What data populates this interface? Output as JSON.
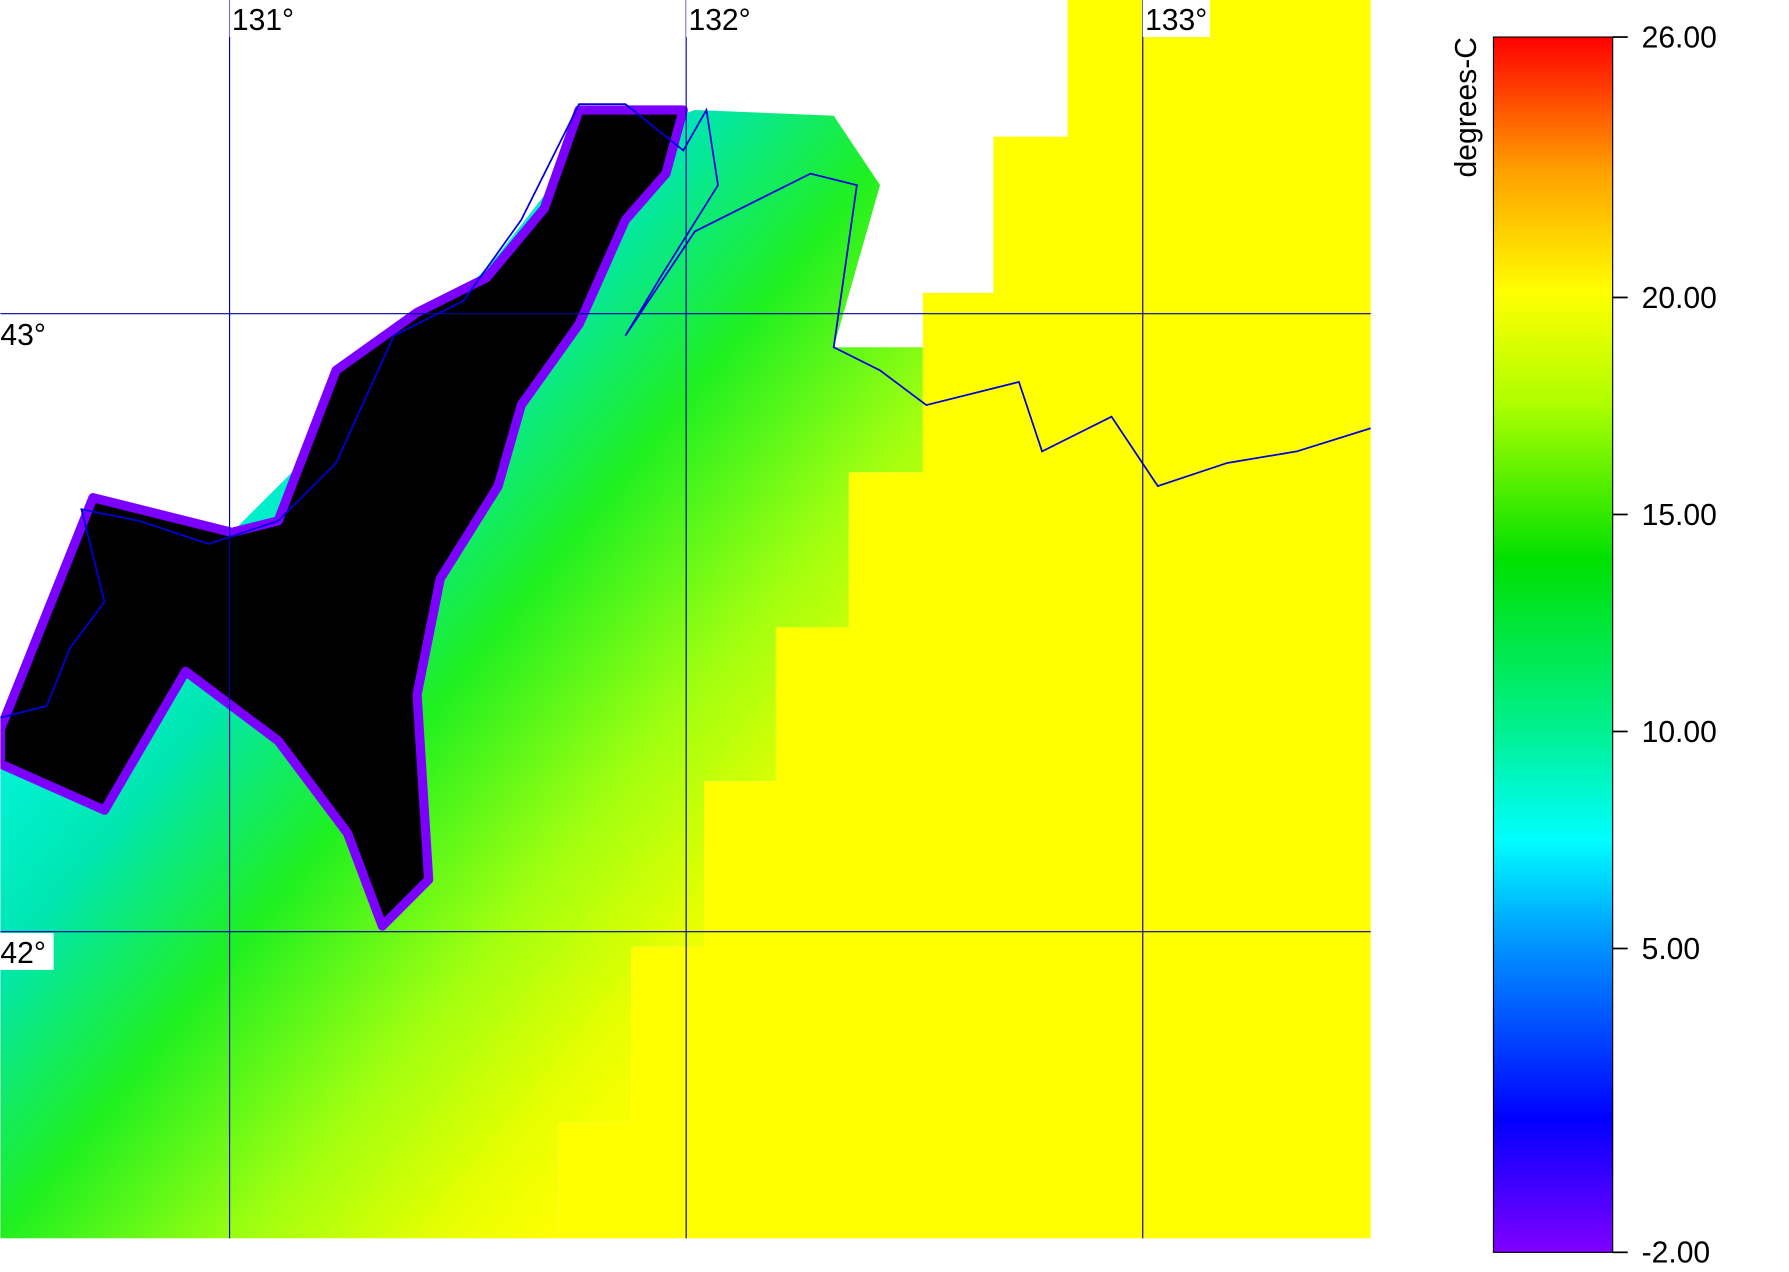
{
  "map": {
    "longitudes": [
      {
        "value": 131,
        "label": "131°"
      },
      {
        "value": 132,
        "label": "132°"
      },
      {
        "value": 133,
        "label": "133°"
      }
    ],
    "latitudes": [
      {
        "value": 43,
        "label": "43°"
      },
      {
        "value": 42,
        "label": "42°"
      }
    ]
  },
  "colorbar": {
    "title": "degrees-C",
    "ticks": [
      {
        "value": 26,
        "label": "26.00"
      },
      {
        "value": 20,
        "label": "20.00"
      },
      {
        "value": 15,
        "label": "15.00"
      },
      {
        "value": 10,
        "label": "10.00"
      },
      {
        "value": 5,
        "label": "5.00"
      },
      {
        "value": -2,
        "label": "-2.00"
      }
    ]
  }
}
